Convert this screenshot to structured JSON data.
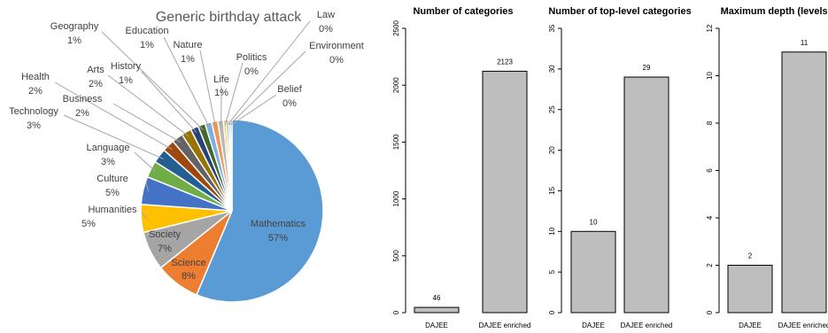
{
  "chart_data": [
    {
      "type": "pie",
      "title": "Generic birthday attack",
      "slices": [
        {
          "label": "Mathematics",
          "pct": "57%",
          "value": 57,
          "color": "#5b9bd5"
        },
        {
          "label": "Science",
          "pct": "8%",
          "value": 8,
          "color": "#ed7d31"
        },
        {
          "label": "Society",
          "pct": "7%",
          "value": 7,
          "color": "#a5a5a5"
        },
        {
          "label": "Humanities",
          "pct": "5%",
          "value": 5,
          "color": "#ffc000"
        },
        {
          "label": "Culture",
          "pct": "5%",
          "value": 5,
          "color": "#4472c4"
        },
        {
          "label": "Language",
          "pct": "3%",
          "value": 3,
          "color": "#70ad47"
        },
        {
          "label": "Technology",
          "pct": "3%",
          "value": 2.6,
          "color": "#255e91"
        },
        {
          "label": "Health",
          "pct": "2%",
          "value": 2.2,
          "color": "#9e480e"
        },
        {
          "label": "Business",
          "pct": "2%",
          "value": 2,
          "color": "#636363"
        },
        {
          "label": "Arts",
          "pct": "2%",
          "value": 1.8,
          "color": "#997300"
        },
        {
          "label": "History",
          "pct": "1%",
          "value": 1.4,
          "color": "#264478"
        },
        {
          "label": "Geography",
          "pct": "1%",
          "value": 1.3,
          "color": "#43682b"
        },
        {
          "label": "Education",
          "pct": "1%",
          "value": 1.2,
          "color": "#7cafdd"
        },
        {
          "label": "Nature",
          "pct": "1%",
          "value": 1.1,
          "color": "#f1975a"
        },
        {
          "label": "Life",
          "pct": "1%",
          "value": 1.0,
          "color": "#b7b7b7"
        },
        {
          "label": "Politics",
          "pct": "0%",
          "value": 0.5,
          "color": "#ffcd33"
        },
        {
          "label": "Law",
          "pct": "0%",
          "value": 0.4,
          "color": "#698ed0"
        },
        {
          "label": "Environment",
          "pct": "0%",
          "value": 0.35,
          "color": "#8cc168"
        },
        {
          "label": "Belief",
          "pct": "0%",
          "value": 0.3,
          "color": "#327dc2"
        }
      ]
    },
    {
      "type": "bar",
      "title": "Number of categories",
      "categories": [
        "DAJEE",
        "DAJEE enriched"
      ],
      "values": [
        46,
        2123
      ],
      "ylim": [
        0,
        2500
      ],
      "yticks": [
        0,
        500,
        1000,
        1500,
        2000,
        2500
      ],
      "bar_color": "#bebebe"
    },
    {
      "type": "bar",
      "title": "Number of top-level categories",
      "categories": [
        "DAJEE",
        "DAJEE enriched"
      ],
      "values": [
        10,
        29
      ],
      "ylim": [
        0,
        35
      ],
      "yticks": [
        0,
        5,
        10,
        15,
        20,
        25,
        30,
        35
      ],
      "bar_color": "#bebebe"
    },
    {
      "type": "bar",
      "title": "Maximum depth (levels)",
      "categories": [
        "DAJEE",
        "DAJEE enriched"
      ],
      "values": [
        2,
        11
      ],
      "ylim": [
        0,
        12
      ],
      "yticks": [
        0,
        2,
        4,
        6,
        8,
        10,
        12
      ],
      "bar_color": "#bebebe"
    }
  ]
}
